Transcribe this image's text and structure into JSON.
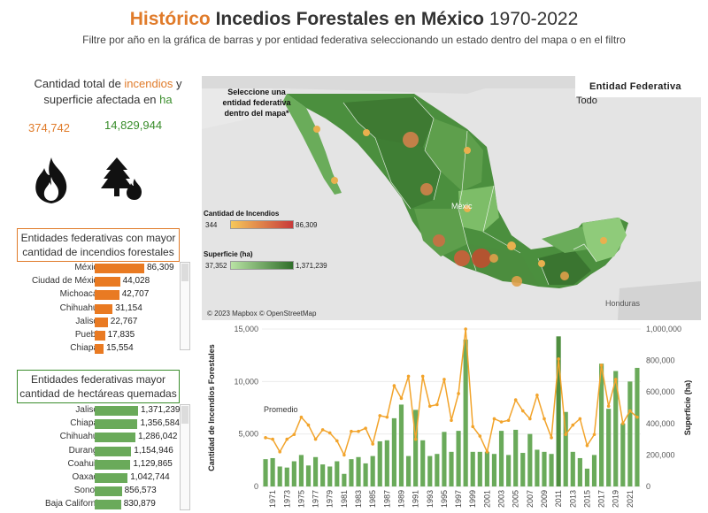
{
  "header": {
    "title_highlight": "Histórico",
    "title_bold": "Incedios Forestales en México",
    "title_years": "1970-2022",
    "subtitle": "Filtre por año en la gráfica de barras  y por entidad federativa seleccionando un estado dentro del mapa o en el filtro"
  },
  "kpis": {
    "label_part1": "Cantidad total de",
    "label_fires": "incendios",
    "label_part2": "y superficie afectada en",
    "label_area_unit": "ha",
    "total_fires": "374,742",
    "total_area": "14,829,944"
  },
  "icons": {
    "fire": "fire-icon",
    "forest": "forest-fire-icon"
  },
  "colors": {
    "orange": "#e07b2a",
    "green": "#3a8d2c",
    "bar_green": "#6aaa5a",
    "bar_orange": "#e97a22",
    "line": "#f2a42c"
  },
  "top_fires": {
    "title": "Entidades federativas  con mayor cantidad de incendios forestales",
    "max": 86309,
    "items": [
      {
        "state": "México",
        "value": 86309,
        "label": "86,309"
      },
      {
        "state": "Ciudad de México",
        "value": 44028,
        "label": "44,028"
      },
      {
        "state": "Michoacán",
        "value": 42707,
        "label": "42,707"
      },
      {
        "state": "Chihuahua",
        "value": 31154,
        "label": "31,154"
      },
      {
        "state": "Jalisco",
        "value": 22767,
        "label": "22,767"
      },
      {
        "state": "Puebla",
        "value": 17835,
        "label": "17,835"
      },
      {
        "state": "Chiapas",
        "value": 15554,
        "label": "15,554"
      }
    ]
  },
  "top_area": {
    "title": "Entidades federativas  mayor cantidad de hectáreas quemadas",
    "max": 1371239,
    "items": [
      {
        "state": "Jalisco",
        "value": 1371239,
        "label": "1,371,239"
      },
      {
        "state": "Chiapas",
        "value": 1356584,
        "label": "1,356,584"
      },
      {
        "state": "Chihuahua",
        "value": 1286042,
        "label": "1,286,042"
      },
      {
        "state": "Durango",
        "value": 1154946,
        "label": "1,154,946"
      },
      {
        "state": "Coahuila",
        "value": 1129865,
        "label": "1,129,865"
      },
      {
        "state": "Oaxaca",
        "value": 1042744,
        "label": "1,042,744"
      },
      {
        "state": "Sonora",
        "value": 856573,
        "label": "856,573"
      },
      {
        "state": "Baja California",
        "value": 830879,
        "label": "830,879"
      }
    ]
  },
  "map": {
    "hint": "Seleccione una entidad federativa dentro del mapa*",
    "filter_title": "Entidad  Federativa",
    "filter_value": "Todo",
    "legend_fires_title": "Cantidad de Incendios",
    "legend_fires_min": "344",
    "legend_fires_max": "86,309",
    "legend_area_title": "Superficie (ha)",
    "legend_area_min": "37,352",
    "legend_area_max": "1,371,239",
    "label_honduras": "Honduras",
    "label_mexico": "Méxic",
    "attribution": "© 2023 Mapbox © OpenStreetMap"
  },
  "chart_data": {
    "type": "bar",
    "ylabel": "Cantidad de Incendios Forestales",
    "y2label": "Superficie (ha)",
    "annotation": "Promedio",
    "ylim": [
      0,
      15000
    ],
    "y2lim": [
      0,
      1000000
    ],
    "yticks": [
      "0",
      "5,000",
      "10,000",
      "15,000"
    ],
    "y2ticks": [
      "0",
      "200,000",
      "400,000",
      "600,000",
      "800,000",
      "1,000,000"
    ],
    "x_tick_labels": [
      "1971",
      "1973",
      "1975",
      "1977",
      "1979",
      "1981",
      "1983",
      "1985",
      "1987",
      "1989",
      "1991",
      "1993",
      "1995",
      "1997",
      "1999",
      "2001",
      "2003",
      "2005",
      "2007",
      "2009",
      "2011",
      "2013",
      "2015",
      "2017",
      "2019",
      "2021"
    ],
    "x": [
      1970,
      1971,
      1972,
      1973,
      1974,
      1975,
      1976,
      1977,
      1978,
      1979,
      1980,
      1981,
      1982,
      1983,
      1984,
      1985,
      1986,
      1987,
      1988,
      1989,
      1990,
      1991,
      1992,
      1993,
      1994,
      1995,
      1996,
      1997,
      1998,
      1999,
      2000,
      2001,
      2002,
      2003,
      2004,
      2005,
      2006,
      2007,
      2008,
      2009,
      2010,
      2011,
      2012,
      2013,
      2014,
      2015,
      2016,
      2017,
      2018,
      2019,
      2020,
      2021,
      2022
    ],
    "series": [
      {
        "name": "Cantidad de Incendios Forestales",
        "axis": "left",
        "values": [
          2600,
          2700,
          1900,
          1800,
          2400,
          3000,
          2000,
          2800,
          2100,
          1900,
          2400,
          1200,
          2600,
          2800,
          2200,
          2900,
          4300,
          4400,
          6500,
          7800,
          2900,
          7300,
          4400,
          2900,
          3100,
          5200,
          3300,
          5300,
          14000,
          3300,
          3300,
          3300,
          3100,
          5300,
          3000,
          5400,
          3200,
          5000,
          3500,
          3300,
          3100,
          14300,
          7100,
          3300,
          2700,
          1700,
          3000,
          11700,
          7400,
          11000,
          6000,
          10000,
          11300
        ],
        "highlight_indices": [
          41
        ]
      },
      {
        "name": "Superficie (ha)",
        "axis": "right",
        "values": [
          310000,
          300000,
          220000,
          300000,
          330000,
          440000,
          390000,
          300000,
          360000,
          340000,
          290000,
          200000,
          350000,
          350000,
          370000,
          270000,
          450000,
          440000,
          640000,
          560000,
          700000,
          300000,
          700000,
          510000,
          520000,
          680000,
          420000,
          590000,
          1000000,
          380000,
          320000,
          220000,
          430000,
          410000,
          420000,
          550000,
          480000,
          430000,
          580000,
          430000,
          310000,
          810000,
          330000,
          390000,
          430000,
          260000,
          330000,
          770000,
          510000,
          680000,
          400000,
          480000,
          440000
        ]
      }
    ]
  }
}
